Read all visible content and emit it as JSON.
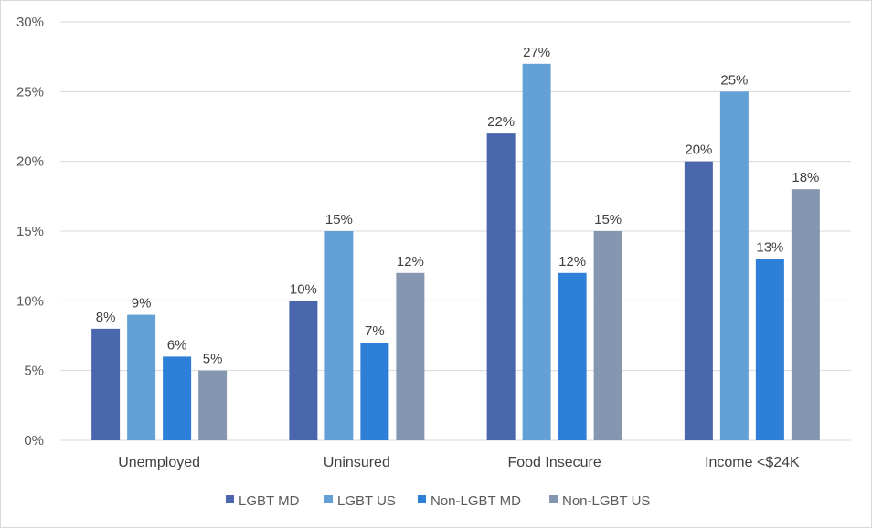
{
  "chart_data": {
    "type": "bar",
    "categories": [
      "Unemployed",
      "Uninsured",
      "Food Insecure",
      "Income <$24K"
    ],
    "series": [
      {
        "name": "LGBT MD",
        "color": "#4a66ac",
        "values": [
          8,
          10,
          22,
          20
        ],
        "labels": [
          "8%",
          "10%",
          "22%",
          "20%"
        ]
      },
      {
        "name": "LGBT US",
        "color": "#63a0d6",
        "values": [
          9,
          15,
          27,
          25
        ],
        "labels": [
          "9%",
          "15%",
          "27%",
          "25%"
        ]
      },
      {
        "name": "Non-LGBT MD",
        "color": "#2e7fd8",
        "values": [
          6,
          7,
          12,
          13
        ],
        "labels": [
          "6%",
          "7%",
          "12%",
          "13%"
        ]
      },
      {
        "name": "Non-LGBT US",
        "color": "#8496b0",
        "values": [
          5,
          12,
          15,
          18
        ],
        "labels": [
          "5%",
          "12%",
          "15%",
          "18%"
        ]
      }
    ],
    "ylim": [
      0,
      30
    ],
    "yticks": [
      0,
      5,
      10,
      15,
      20,
      25,
      30
    ],
    "ytick_labels": [
      "0%",
      "5%",
      "10%",
      "15%",
      "20%",
      "25%",
      "30%"
    ],
    "grid": true,
    "gridline_color": "#d9d9d9",
    "legend_position": "bottom",
    "title": "",
    "xlabel": "",
    "ylabel": ""
  }
}
